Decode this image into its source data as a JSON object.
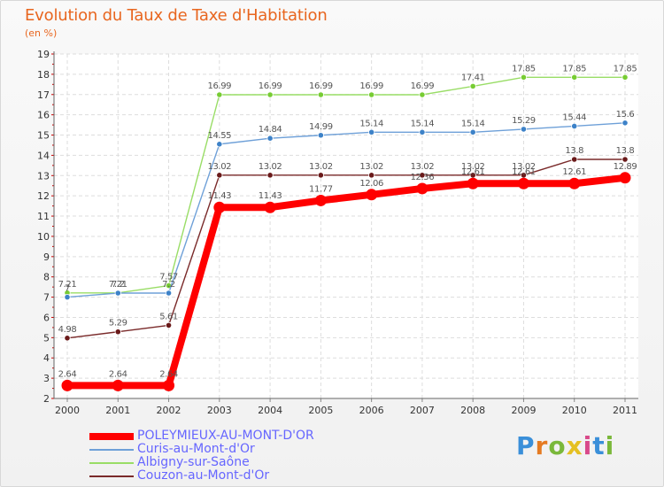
{
  "chart_data": {
    "type": "line",
    "title": "Evolution du Taux de Taxe d'Habitation",
    "subtitle": "(en %)",
    "xlabel": "",
    "ylabel": "(en %)",
    "categories": [
      "2000",
      "2001",
      "2002",
      "2003",
      "2004",
      "2005",
      "2006",
      "2007",
      "2008",
      "2009",
      "2010",
      "2011"
    ],
    "ylim": [
      2,
      19
    ],
    "yticks": [
      2,
      3,
      4,
      5,
      6,
      7,
      8,
      9,
      10,
      11,
      12,
      13,
      14,
      15,
      16,
      17,
      18,
      19
    ],
    "grid": true,
    "legend_position": "bottom-left",
    "series": [
      {
        "name": "POLEYMIEUX-AU-MONT-D'OR",
        "color": "#ff0000",
        "point_color": "#ff0000",
        "values": [
          2.64,
          2.64,
          2.64,
          11.43,
          11.43,
          11.77,
          12.06,
          12.36,
          12.61,
          12.61,
          12.61,
          12.89
        ],
        "labels": [
          "2.64",
          "2.64",
          "2.64",
          "11.43",
          "11.43",
          "11.77",
          "12.06",
          "12.36",
          "12.61",
          "12.61",
          "12.61",
          "12.89"
        ]
      },
      {
        "name": "Curis-au-Mont-d'Or",
        "color": "#6ea0d8",
        "point_color": "#3d82c8",
        "values": [
          7.0,
          7.2,
          7.2,
          14.55,
          14.84,
          14.99,
          15.14,
          15.14,
          15.14,
          15.29,
          15.44,
          15.6
        ],
        "labels": [
          "7",
          "7.2",
          "7.2",
          "14.55",
          "14.84",
          "14.99",
          "15.14",
          "15.14",
          "15.14",
          "15.29",
          "15.44",
          "15.6"
        ]
      },
      {
        "name": "Albigny-sur-Saône",
        "color": "#99dd66",
        "point_color": "#77cc33",
        "values": [
          7.21,
          7.21,
          7.57,
          16.99,
          16.99,
          16.99,
          16.99,
          16.99,
          17.41,
          17.85,
          17.85,
          17.85
        ],
        "labels": [
          "7.21",
          "7.21",
          "7.57",
          "16.99",
          "16.99",
          "16.99",
          "16.99",
          "16.99",
          "17.41",
          "17.85",
          "17.85",
          "17.85"
        ]
      },
      {
        "name": "Couzon-au-Mont-d'Or",
        "color": "#7a2a2a",
        "point_color": "#6a1a1a",
        "values": [
          4.98,
          5.29,
          5.61,
          13.02,
          13.02,
          13.02,
          13.02,
          13.02,
          13.02,
          13.02,
          13.8,
          13.8
        ],
        "labels": [
          "4.98",
          "5.29",
          "5.61",
          "13.02",
          "13.02",
          "13.02",
          "13.02",
          "13.02",
          "13.02",
          "13.02",
          "13.8",
          "13.8"
        ]
      }
    ]
  },
  "logo": {
    "letters": [
      "P",
      "r",
      "o",
      "x",
      "i",
      "t",
      "i"
    ],
    "colors": [
      "#3a8fd9",
      "#e57b22",
      "#7ab83a",
      "#e5c022",
      "#d94a8a",
      "#3a8fd9",
      "#7ab83a"
    ]
  }
}
